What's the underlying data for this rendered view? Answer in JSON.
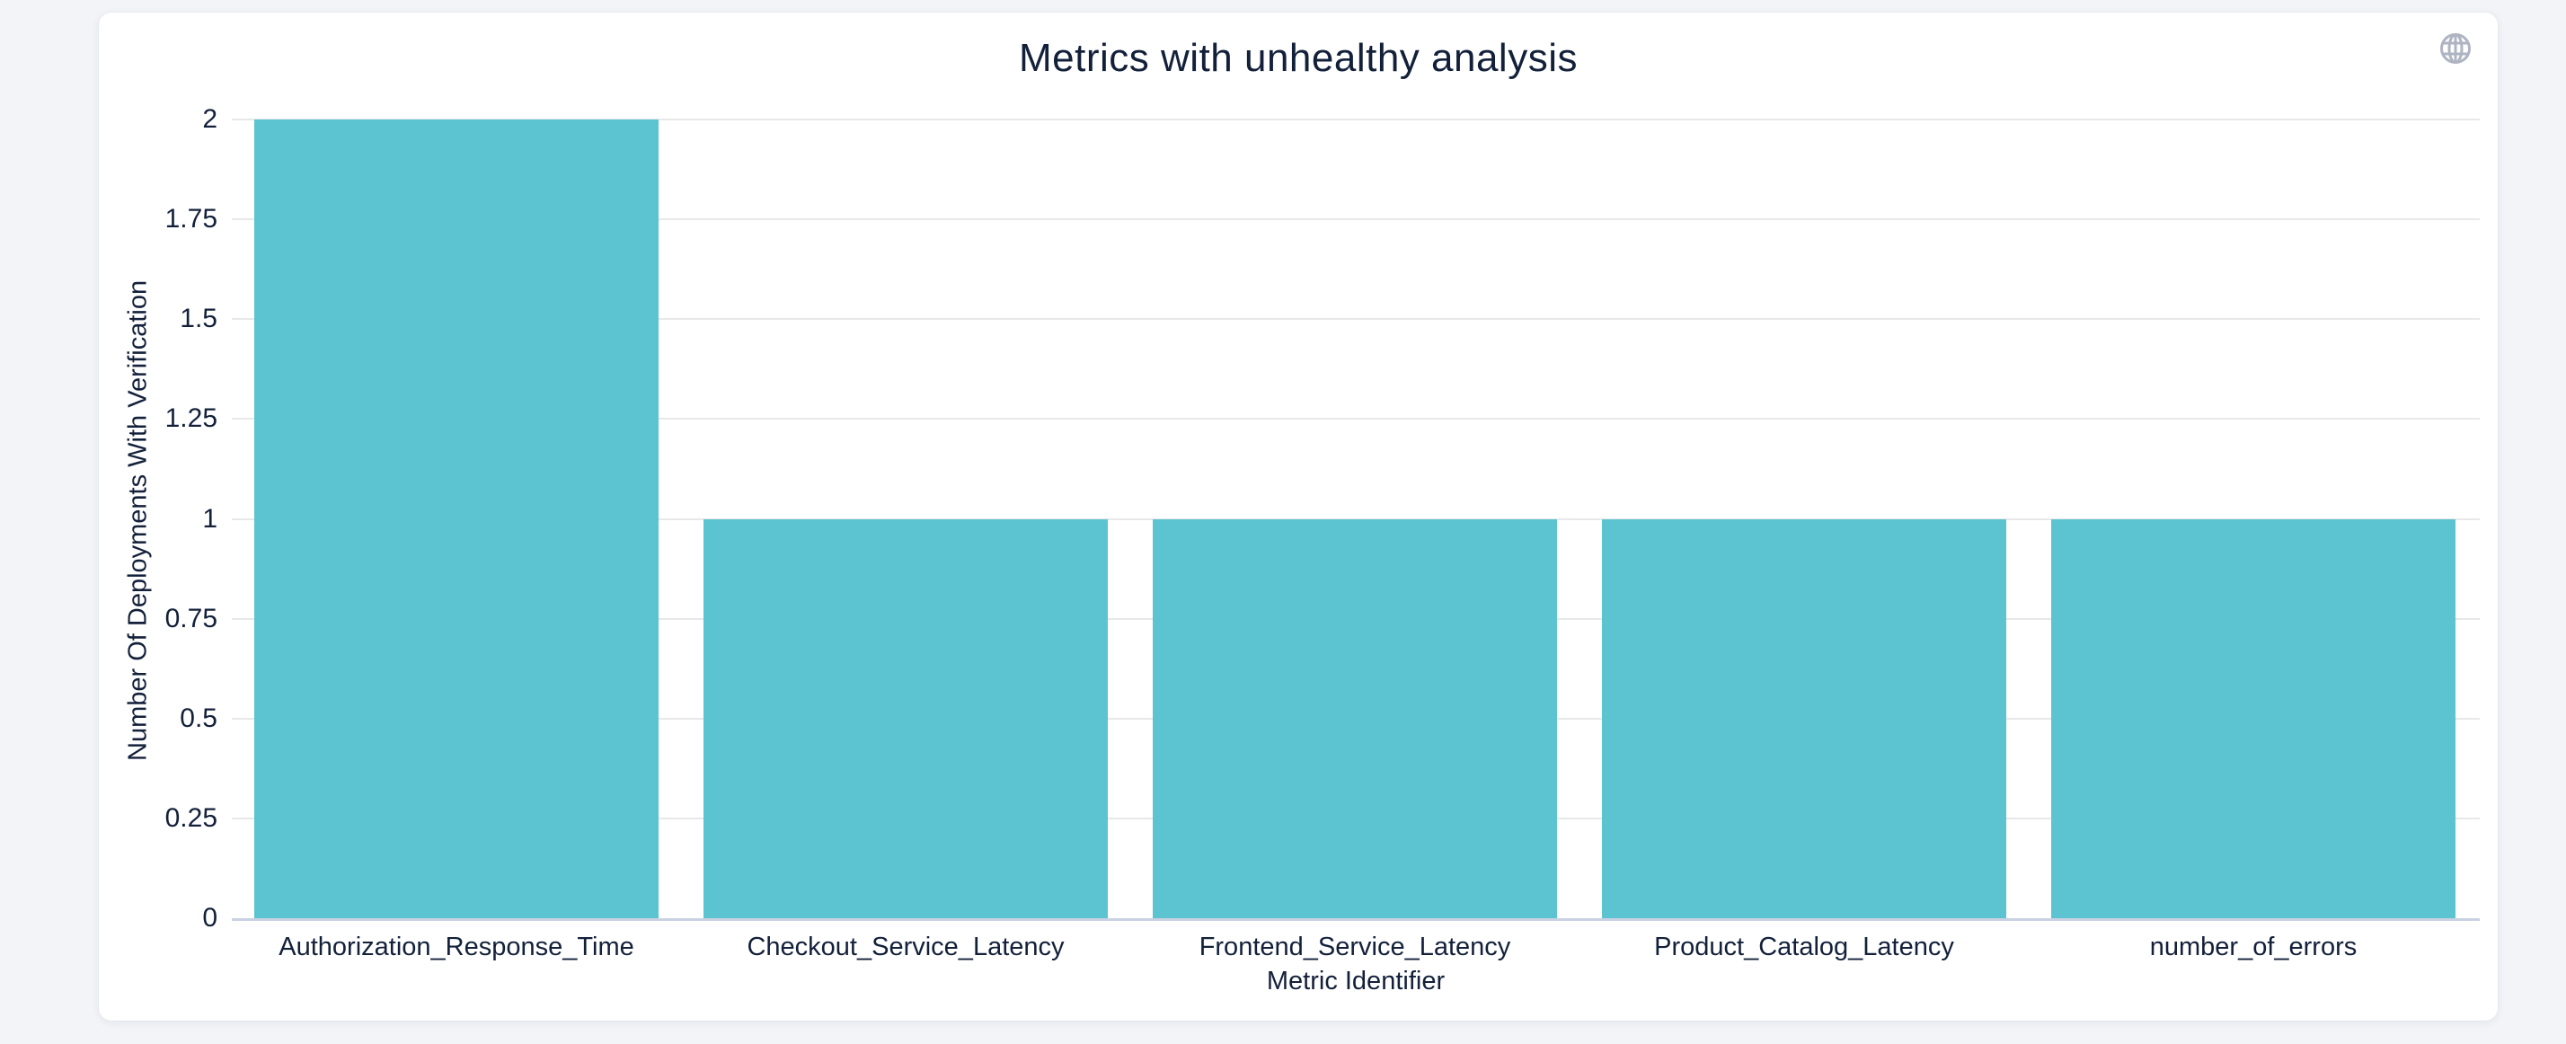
{
  "chart_data": {
    "type": "bar",
    "title": "Metrics with unhealthy analysis",
    "categories": [
      "Authorization_Response_Time",
      "Checkout_Service_Latency",
      "Frontend_Service_Latency",
      "Product_Catalog_Latency",
      "number_of_errors"
    ],
    "values": [
      2,
      1,
      1,
      1,
      1
    ],
    "xlabel": "Metric Identifier",
    "ylabel": "Number Of Deployments With Verification",
    "ylim": [
      0,
      2
    ],
    "ytick_labels": [
      "0",
      "0.25",
      "0.5",
      "0.75",
      "1",
      "1.25",
      "1.5",
      "1.75",
      "2"
    ],
    "grid": true,
    "legend": "none",
    "bar_color": "#5BC4D0",
    "grid_color": "#E8E8E8",
    "axis_line_color": "#C9D1E3",
    "text_color": "#13203A",
    "background": "#FFFFFF"
  },
  "icons": {
    "globe": "globe-icon"
  }
}
